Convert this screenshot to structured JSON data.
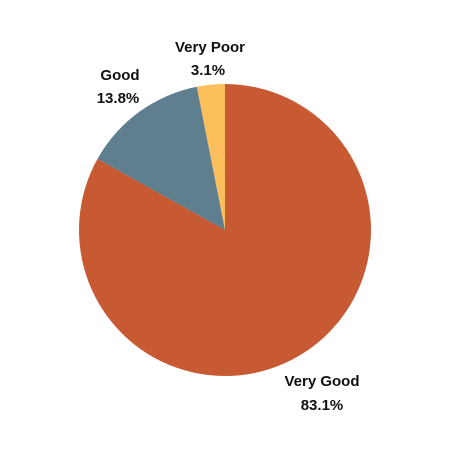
{
  "chart_data": {
    "type": "pie",
    "title": "",
    "slices": [
      {
        "label": "Very Poor",
        "value": 3.1,
        "value_label": "3.1%",
        "color": "#FDBE5C"
      },
      {
        "label": "Very Good",
        "value": 83.1,
        "value_label": "83.1%",
        "color": "#C85A33"
      },
      {
        "label": "Good",
        "value": 13.8,
        "value_label": "13.8%",
        "color": "#607F8E"
      }
    ],
    "legend": "none"
  }
}
